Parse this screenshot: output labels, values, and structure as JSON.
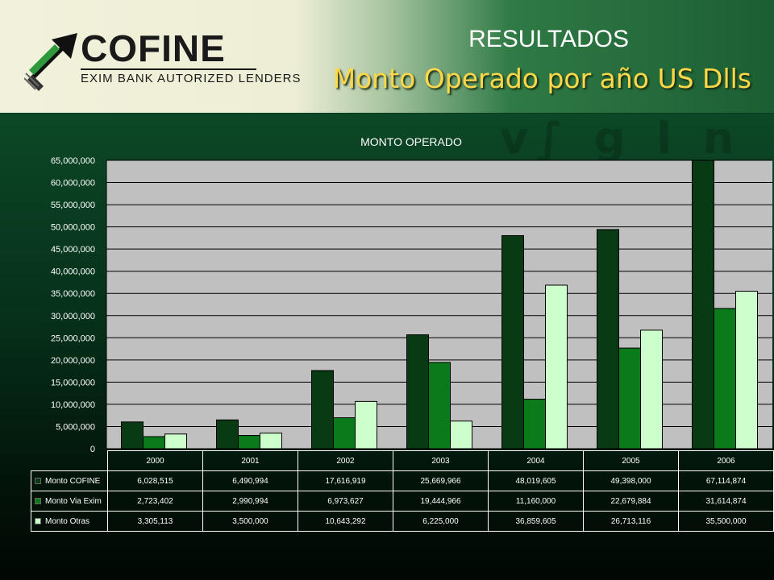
{
  "header": {
    "logo_name": "COFINE",
    "logo_tagline": "EXIM BANK AUTORIZED LENDERS",
    "title_line1": "RESULTADOS",
    "title_line2": "Monto Operado por año US Dlls"
  },
  "chart_data": {
    "type": "bar",
    "title": "MONTO OPERADO",
    "categories": [
      "2000",
      "2001",
      "2002",
      "2003",
      "2004",
      "2005",
      "2006"
    ],
    "series": [
      {
        "name": "Monto COFINE",
        "color": "#083a14",
        "values": [
          6028515,
          6490994,
          17616919,
          25669966,
          48019605,
          49398000,
          67114874
        ],
        "labels": [
          "6,028,515",
          "6,490,994",
          "17,616,919",
          "25,669,966",
          "48,019,605",
          "49,398,000",
          "67,114,874"
        ]
      },
      {
        "name": "Monto Via Exim",
        "color": "#0a7a1a",
        "values": [
          2723402,
          2990994,
          6973627,
          19444966,
          11160000,
          22679884,
          31614874
        ],
        "labels": [
          "2,723,402",
          "2,990,994",
          "6,973,627",
          "19,444,966",
          "11,160,000",
          "22,679,884",
          "31,614,874"
        ]
      },
      {
        "name": "Monto Otras",
        "color": "#ccffcc",
        "values": [
          3305113,
          3500000,
          10643292,
          6225000,
          36859605,
          26713116,
          35500000
        ],
        "labels": [
          "3,305,113",
          "3,500,000",
          "10,643,292",
          "6,225,000",
          "36,859,605",
          "26,713,116",
          "35,500,000"
        ]
      }
    ],
    "ylim": [
      0,
      65000000
    ],
    "yticks": [
      "0",
      "5,000,000",
      "10,000,000",
      "15,000,000",
      "20,000,000",
      "25,000,000",
      "30,000,000",
      "35,000,000",
      "40,000,000",
      "45,000,000",
      "50,000,000",
      "55,000,000",
      "60,000,000",
      "65,000,000"
    ],
    "plot_background": "#c0c0c0",
    "grid": true,
    "legend": "data table below chart"
  }
}
